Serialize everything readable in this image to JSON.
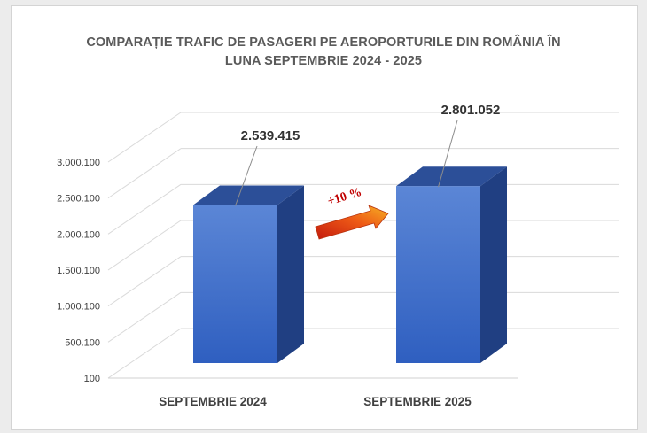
{
  "chart_data": {
    "type": "bar",
    "title_lines": [
      "COMPARAȚIE TRAFIC DE PASAGERI PE AEROPORTURILE DIN ROMÂNIA ÎN",
      "LUNA SEPTEMBRIE 2024 - 2025"
    ],
    "categories": [
      "SEPTEMBRIE 2024",
      "SEPTEMBRIE 2025"
    ],
    "values": [
      2539415,
      2801052
    ],
    "value_labels": [
      "2.539.415",
      "2.801.052"
    ],
    "y_ticks": [
      100,
      500100,
      1000100,
      1500100,
      2000100,
      2500100,
      3000100
    ],
    "y_tick_labels": [
      "100",
      "500.100",
      "1.000.100",
      "1.500.100",
      "2.000.100",
      "2.500.100",
      "3.000.100"
    ],
    "ylim": [
      100,
      3000100
    ],
    "growth_annotation": "+10 %",
    "bar_color": "#4472c4",
    "arrow_color": "#e8421a",
    "grid": true,
    "legend": "none"
  }
}
